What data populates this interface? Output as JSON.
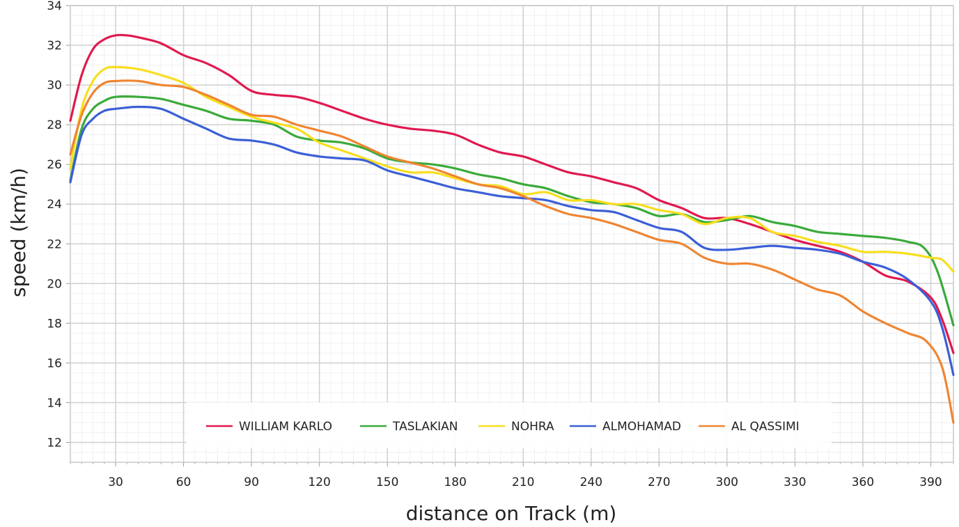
{
  "chart_data": {
    "type": "line",
    "xlabel": "distance on Track (m)",
    "ylabel": "speed (km/h)",
    "xlim": [
      10,
      400
    ],
    "ylim": [
      11,
      34
    ],
    "xticks": [
      30,
      60,
      90,
      120,
      150,
      180,
      210,
      240,
      270,
      300,
      330,
      360,
      390
    ],
    "yticks": [
      12,
      14,
      16,
      18,
      20,
      22,
      24,
      26,
      28,
      30,
      32,
      34
    ],
    "grid": true,
    "legend_position": "bottom-center",
    "series": [
      {
        "name": "WILLIAM KARLO",
        "color": "#e0194f",
        "points": [
          [
            10,
            28.2
          ],
          [
            15,
            30.5
          ],
          [
            20,
            31.8
          ],
          [
            25,
            32.3
          ],
          [
            30,
            32.5
          ],
          [
            35,
            32.5
          ],
          [
            40,
            32.4
          ],
          [
            50,
            32.1
          ],
          [
            60,
            31.5
          ],
          [
            70,
            31.1
          ],
          [
            80,
            30.5
          ],
          [
            90,
            29.7
          ],
          [
            100,
            29.5
          ],
          [
            110,
            29.4
          ],
          [
            120,
            29.1
          ],
          [
            130,
            28.7
          ],
          [
            140,
            28.3
          ],
          [
            150,
            28.0
          ],
          [
            160,
            27.8
          ],
          [
            170,
            27.7
          ],
          [
            180,
            27.5
          ],
          [
            190,
            27.0
          ],
          [
            200,
            26.6
          ],
          [
            210,
            26.4
          ],
          [
            220,
            26.0
          ],
          [
            230,
            25.6
          ],
          [
            240,
            25.4
          ],
          [
            250,
            25.1
          ],
          [
            260,
            24.8
          ],
          [
            270,
            24.2
          ],
          [
            280,
            23.8
          ],
          [
            290,
            23.3
          ],
          [
            300,
            23.3
          ],
          [
            310,
            23.0
          ],
          [
            320,
            22.6
          ],
          [
            330,
            22.2
          ],
          [
            340,
            21.9
          ],
          [
            350,
            21.6
          ],
          [
            360,
            21.1
          ],
          [
            370,
            20.4
          ],
          [
            380,
            20.1
          ],
          [
            390,
            19.3
          ],
          [
            395,
            18.2
          ],
          [
            400,
            16.5
          ]
        ]
      },
      {
        "name": "TASLAKIAN",
        "color": "#3aaa3a",
        "points": [
          [
            10,
            25.2
          ],
          [
            15,
            27.8
          ],
          [
            20,
            28.8
          ],
          [
            25,
            29.2
          ],
          [
            30,
            29.4
          ],
          [
            40,
            29.4
          ],
          [
            50,
            29.3
          ],
          [
            60,
            29.0
          ],
          [
            70,
            28.7
          ],
          [
            80,
            28.3
          ],
          [
            90,
            28.2
          ],
          [
            100,
            28.0
          ],
          [
            110,
            27.4
          ],
          [
            120,
            27.2
          ],
          [
            130,
            27.1
          ],
          [
            140,
            26.8
          ],
          [
            150,
            26.3
          ],
          [
            160,
            26.1
          ],
          [
            170,
            26.0
          ],
          [
            180,
            25.8
          ],
          [
            190,
            25.5
          ],
          [
            200,
            25.3
          ],
          [
            210,
            25.0
          ],
          [
            220,
            24.8
          ],
          [
            230,
            24.4
          ],
          [
            240,
            24.1
          ],
          [
            250,
            24.0
          ],
          [
            260,
            23.8
          ],
          [
            270,
            23.4
          ],
          [
            280,
            23.5
          ],
          [
            290,
            23.1
          ],
          [
            300,
            23.2
          ],
          [
            310,
            23.4
          ],
          [
            320,
            23.1
          ],
          [
            330,
            22.9
          ],
          [
            340,
            22.6
          ],
          [
            350,
            22.5
          ],
          [
            360,
            22.4
          ],
          [
            370,
            22.3
          ],
          [
            380,
            22.1
          ],
          [
            387,
            21.8
          ],
          [
            393,
            20.6
          ],
          [
            400,
            17.9
          ]
        ]
      },
      {
        "name": "NOHRA",
        "color": "#f8de1e",
        "points": [
          [
            10,
            25.8
          ],
          [
            15,
            28.8
          ],
          [
            20,
            30.2
          ],
          [
            25,
            30.8
          ],
          [
            30,
            30.9
          ],
          [
            40,
            30.8
          ],
          [
            50,
            30.5
          ],
          [
            60,
            30.1
          ],
          [
            70,
            29.4
          ],
          [
            80,
            28.9
          ],
          [
            90,
            28.4
          ],
          [
            100,
            28.1
          ],
          [
            110,
            27.8
          ],
          [
            120,
            27.1
          ],
          [
            130,
            26.7
          ],
          [
            140,
            26.3
          ],
          [
            150,
            25.9
          ],
          [
            160,
            25.6
          ],
          [
            170,
            25.6
          ],
          [
            180,
            25.3
          ],
          [
            190,
            25.0
          ],
          [
            200,
            24.9
          ],
          [
            210,
            24.5
          ],
          [
            220,
            24.6
          ],
          [
            230,
            24.2
          ],
          [
            240,
            24.2
          ],
          [
            250,
            24.0
          ],
          [
            260,
            24.0
          ],
          [
            270,
            23.7
          ],
          [
            280,
            23.5
          ],
          [
            290,
            23.0
          ],
          [
            300,
            23.3
          ],
          [
            310,
            23.3
          ],
          [
            320,
            22.6
          ],
          [
            330,
            22.4
          ],
          [
            340,
            22.1
          ],
          [
            350,
            21.9
          ],
          [
            360,
            21.6
          ],
          [
            370,
            21.6
          ],
          [
            380,
            21.5
          ],
          [
            390,
            21.3
          ],
          [
            395,
            21.2
          ],
          [
            400,
            20.6
          ]
        ]
      },
      {
        "name": "ALMOHAMAD",
        "color": "#3b5fd6",
        "points": [
          [
            10,
            25.1
          ],
          [
            15,
            27.5
          ],
          [
            20,
            28.3
          ],
          [
            25,
            28.7
          ],
          [
            30,
            28.8
          ],
          [
            40,
            28.9
          ],
          [
            50,
            28.8
          ],
          [
            60,
            28.3
          ],
          [
            70,
            27.8
          ],
          [
            80,
            27.3
          ],
          [
            90,
            27.2
          ],
          [
            100,
            27.0
          ],
          [
            110,
            26.6
          ],
          [
            120,
            26.4
          ],
          [
            130,
            26.3
          ],
          [
            140,
            26.2
          ],
          [
            150,
            25.7
          ],
          [
            160,
            25.4
          ],
          [
            170,
            25.1
          ],
          [
            180,
            24.8
          ],
          [
            190,
            24.6
          ],
          [
            200,
            24.4
          ],
          [
            210,
            24.3
          ],
          [
            220,
            24.2
          ],
          [
            230,
            23.9
          ],
          [
            240,
            23.7
          ],
          [
            250,
            23.6
          ],
          [
            260,
            23.2
          ],
          [
            270,
            22.8
          ],
          [
            280,
            22.6
          ],
          [
            290,
            21.8
          ],
          [
            300,
            21.7
          ],
          [
            310,
            21.8
          ],
          [
            320,
            21.9
          ],
          [
            330,
            21.8
          ],
          [
            340,
            21.7
          ],
          [
            350,
            21.5
          ],
          [
            360,
            21.1
          ],
          [
            370,
            20.8
          ],
          [
            380,
            20.2
          ],
          [
            390,
            19.1
          ],
          [
            395,
            17.8
          ],
          [
            400,
            15.4
          ]
        ]
      },
      {
        "name": "AL QASSIMI",
        "color": "#ef8531",
        "points": [
          [
            10,
            26.5
          ],
          [
            15,
            28.5
          ],
          [
            20,
            29.6
          ],
          [
            25,
            30.1
          ],
          [
            30,
            30.2
          ],
          [
            40,
            30.2
          ],
          [
            50,
            30.0
          ],
          [
            60,
            29.9
          ],
          [
            70,
            29.5
          ],
          [
            80,
            29.0
          ],
          [
            90,
            28.5
          ],
          [
            100,
            28.4
          ],
          [
            110,
            28.0
          ],
          [
            120,
            27.7
          ],
          [
            130,
            27.4
          ],
          [
            140,
            26.9
          ],
          [
            150,
            26.4
          ],
          [
            160,
            26.1
          ],
          [
            170,
            25.8
          ],
          [
            180,
            25.4
          ],
          [
            190,
            25.0
          ],
          [
            200,
            24.8
          ],
          [
            210,
            24.4
          ],
          [
            220,
            23.9
          ],
          [
            230,
            23.5
          ],
          [
            240,
            23.3
          ],
          [
            250,
            23.0
          ],
          [
            260,
            22.6
          ],
          [
            270,
            22.2
          ],
          [
            280,
            22.0
          ],
          [
            290,
            21.3
          ],
          [
            300,
            21.0
          ],
          [
            310,
            21.0
          ],
          [
            320,
            20.7
          ],
          [
            330,
            20.2
          ],
          [
            340,
            19.7
          ],
          [
            350,
            19.4
          ],
          [
            360,
            18.6
          ],
          [
            370,
            18.0
          ],
          [
            380,
            17.5
          ],
          [
            388,
            17.1
          ],
          [
            395,
            15.8
          ],
          [
            400,
            13.0
          ]
        ]
      }
    ]
  }
}
